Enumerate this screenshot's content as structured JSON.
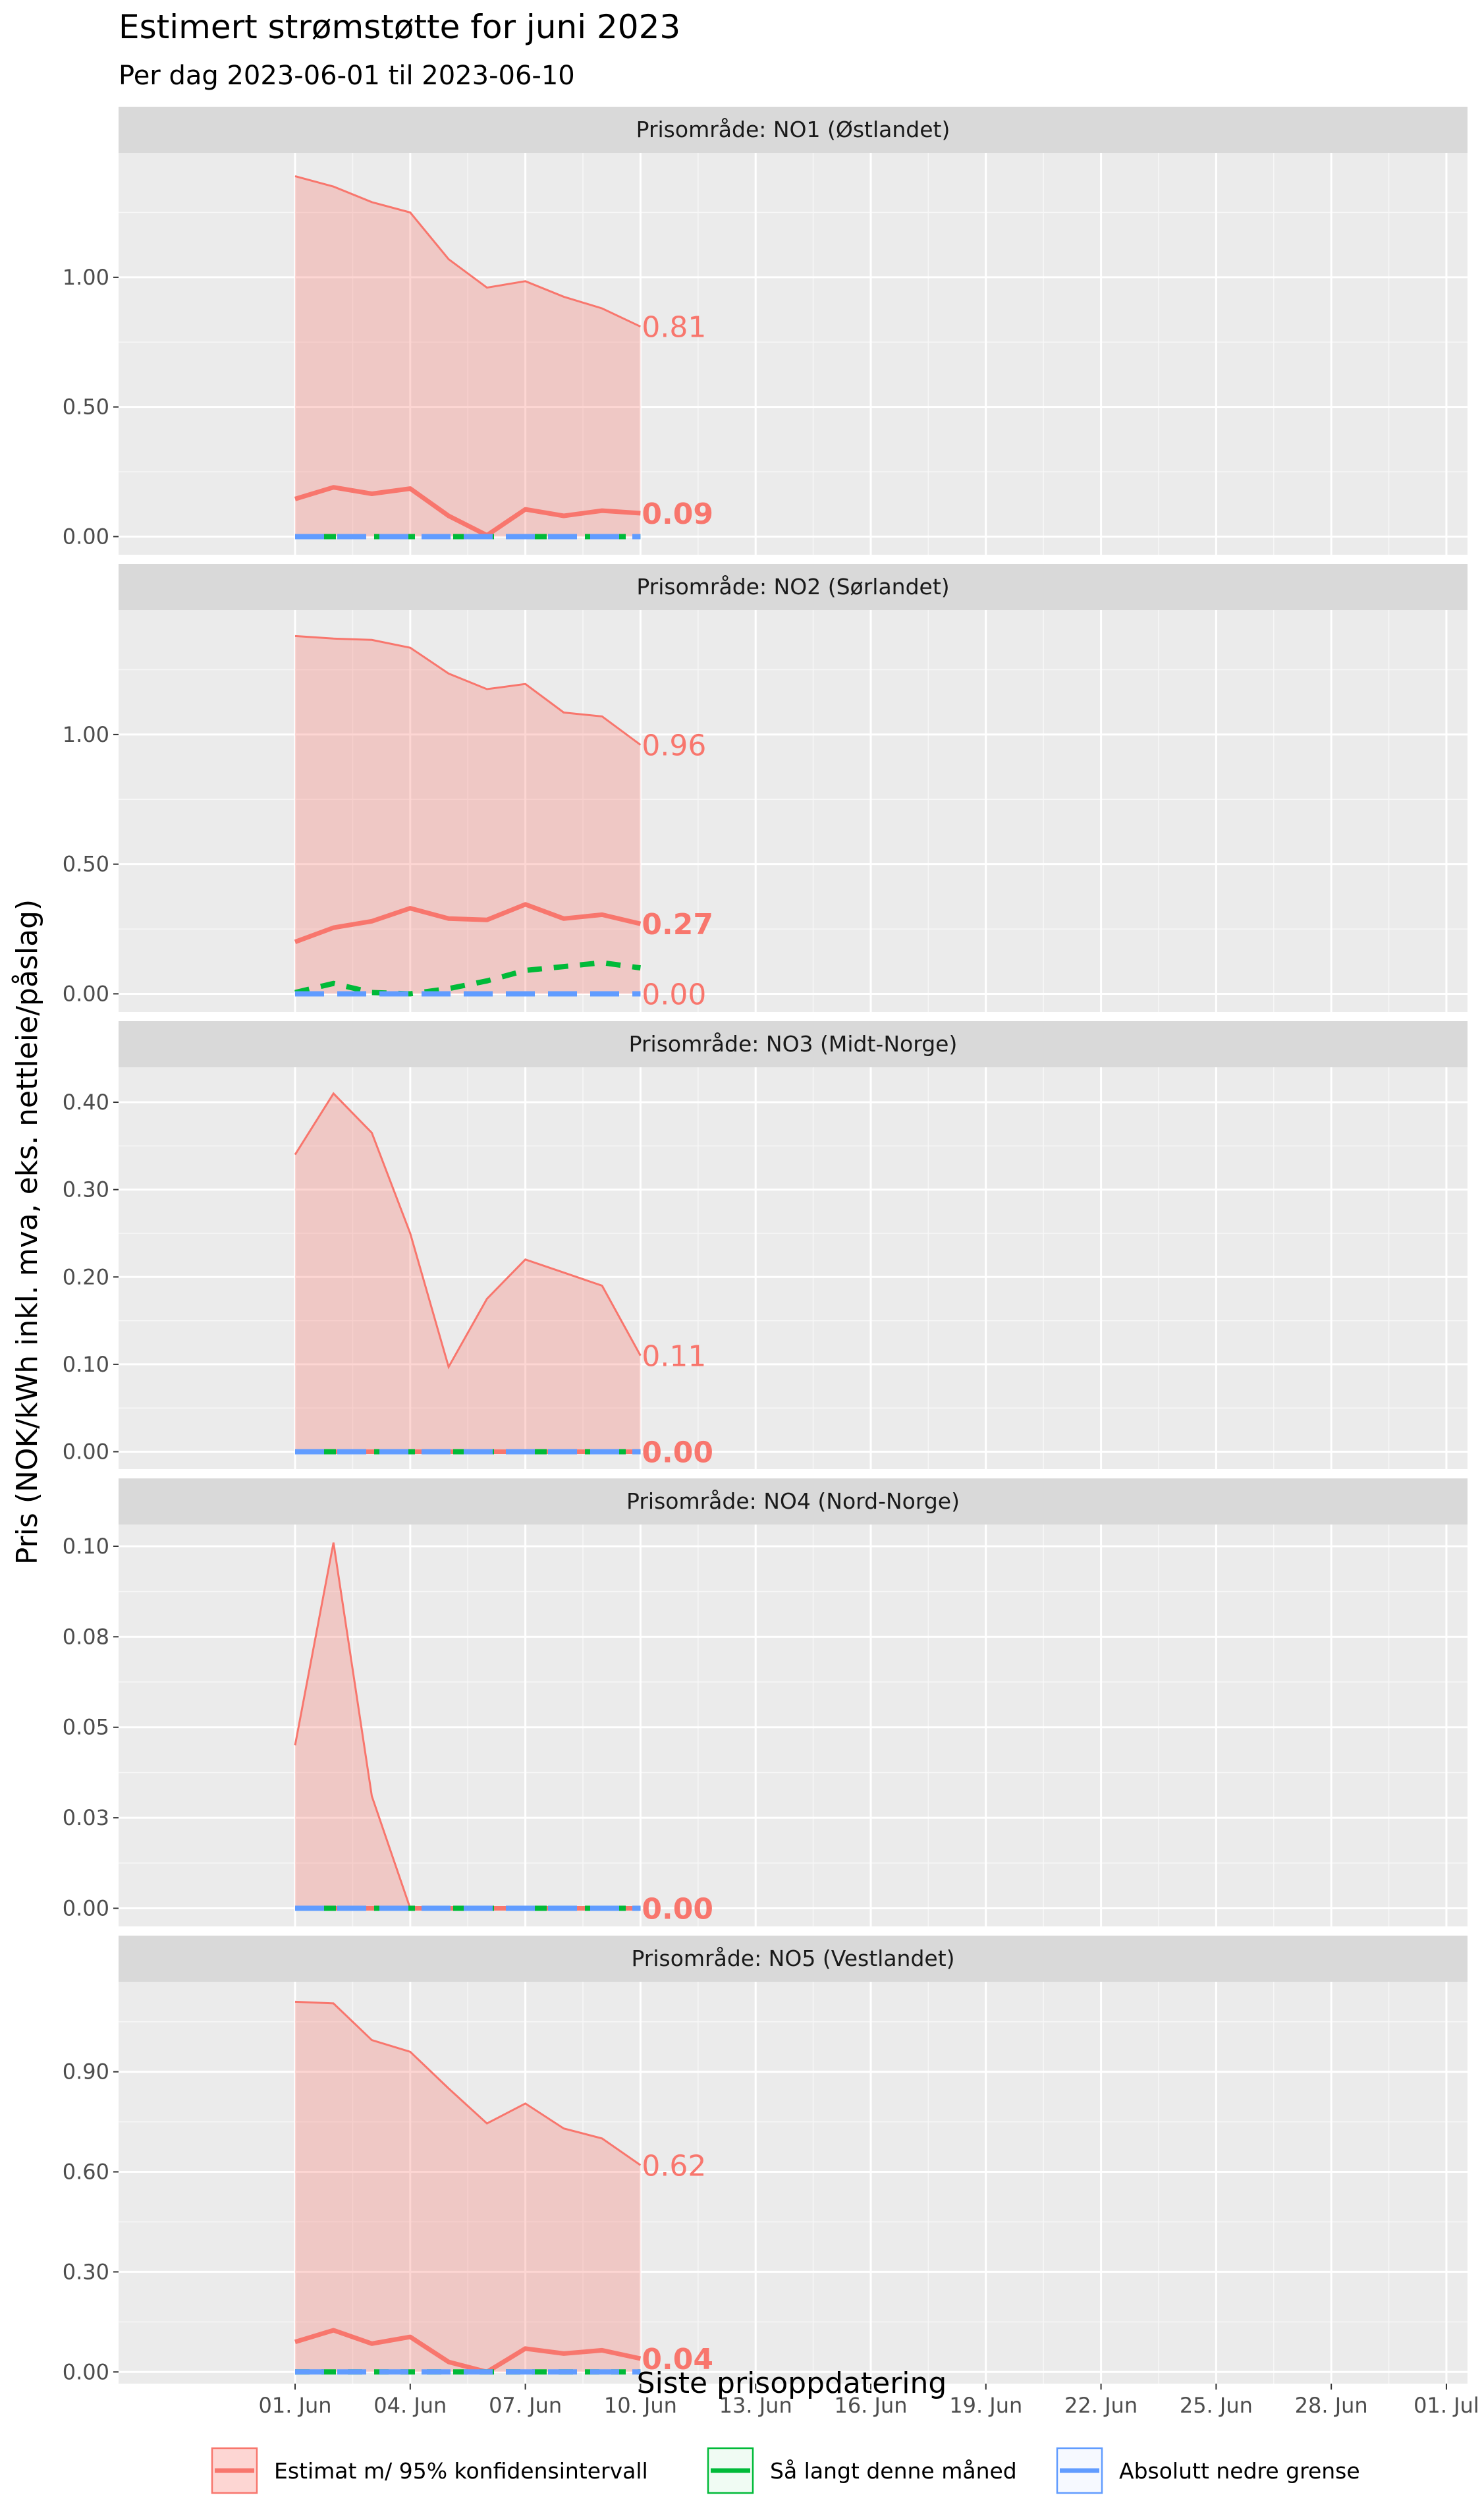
{
  "title": "Estimert strømstøtte for juni 2023",
  "subtitle": "Per dag 2023-06-01 til 2023-06-10",
  "chart_data": {
    "type": "line",
    "xlabel": "Siste prisoppdatering",
    "ylabel": "Pris (NOK/kWh inkl. mva, eks. nettleie/påslag)",
    "x_tick_labels": [
      "01. Jun",
      "04. Jun",
      "07. Jun",
      "10. Jun",
      "13. Jun",
      "16. Jun",
      "19. Jun",
      "22. Jun",
      "25. Jun",
      "28. Jun",
      "01. Jul"
    ],
    "x_tick_dates": [
      "2023-06-01",
      "2023-06-04",
      "2023-06-07",
      "2023-06-10",
      "2023-06-13",
      "2023-06-16",
      "2023-06-19",
      "2023-06-22",
      "2023-06-25",
      "2023-06-28",
      "2023-07-01"
    ],
    "x_dates": [
      "2023-06-01",
      "2023-06-02",
      "2023-06-03",
      "2023-06-04",
      "2023-06-05",
      "2023-06-06",
      "2023-06-07",
      "2023-06-08",
      "2023-06-09",
      "2023-06-10"
    ],
    "xlim": [
      "2023-05-29",
      "2023-07-01"
    ],
    "legend_position": "bottom",
    "legend": [
      {
        "label": "Estimat m/ 95% konfidensintervall",
        "color": "#F8766D"
      },
      {
        "label": "Så langt denne måned",
        "color": "#00BA38"
      },
      {
        "label": "Absolutt nedre grense",
        "color": "#619CFF"
      }
    ],
    "panels": [
      {
        "strip": "Prisområde: NO1 (Østlandet)",
        "ylim": [
          -0.07,
          1.48
        ],
        "y_ticks": [
          0,
          0.5,
          1.0
        ],
        "y_tick_labels": [
          "0.00",
          "0.50",
          "1.00"
        ],
        "upper": [
          1.39,
          1.35,
          1.29,
          1.25,
          1.07,
          0.96,
          0.985,
          0.925,
          0.88,
          0.81
        ],
        "lower": [
          0,
          0,
          0,
          0,
          0,
          0,
          0,
          0,
          0,
          0
        ],
        "estimate": [
          0.145,
          0.19,
          0.165,
          0.185,
          0.08,
          0.005,
          0.105,
          0.08,
          0.1,
          0.09
        ],
        "so_far": [
          0,
          0,
          0,
          0,
          0,
          0,
          0,
          0,
          0,
          0
        ],
        "lower_bound": [
          0,
          0,
          0,
          0,
          0,
          0,
          0,
          0,
          0,
          0
        ],
        "end_labels": [
          {
            "text": "0.81",
            "value": 0.81,
            "bold": false
          },
          {
            "text": "0.09",
            "value": 0.09,
            "bold": true
          }
        ]
      },
      {
        "strip": "Prisområde: NO2 (Sørlandet)",
        "ylim": [
          -0.07,
          1.48
        ],
        "y_ticks": [
          0,
          0.5,
          1.0
        ],
        "y_tick_labels": [
          "0.00",
          "0.50",
          "1.00"
        ],
        "upper": [
          1.38,
          1.37,
          1.365,
          1.335,
          1.235,
          1.175,
          1.195,
          1.085,
          1.07,
          0.96
        ],
        "lower": [
          0,
          0,
          0,
          0,
          0,
          0,
          0,
          0,
          0,
          0
        ],
        "estimate": [
          0.2,
          0.255,
          0.28,
          0.33,
          0.29,
          0.285,
          0.345,
          0.29,
          0.305,
          0.27
        ],
        "so_far": [
          0.005,
          0.04,
          0.005,
          0,
          0.02,
          0.05,
          0.09,
          0.105,
          0.12,
          0.1
        ],
        "lower_bound": [
          0,
          0,
          0,
          0,
          0,
          0,
          0,
          0,
          0,
          0
        ],
        "end_labels": [
          {
            "text": "0.96",
            "value": 0.96,
            "bold": false
          },
          {
            "text": "0.27",
            "value": 0.27,
            "bold": true
          },
          {
            "text": "0.00",
            "value": 0.0,
            "bold": false
          }
        ]
      },
      {
        "strip": "Prisområde: NO3 (Midt-Norge)",
        "ylim": [
          -0.02,
          0.44
        ],
        "y_ticks": [
          0,
          0.1,
          0.2,
          0.3,
          0.4
        ],
        "y_tick_labels": [
          "0.00",
          "0.10",
          "0.20",
          "0.30",
          "0.40"
        ],
        "upper": [
          0.34,
          0.41,
          0.365,
          0.25,
          0.097,
          0.175,
          0.22,
          0.205,
          0.19,
          0.11
        ],
        "lower": [
          0,
          0,
          0,
          0,
          0,
          0,
          0,
          0,
          0,
          0
        ],
        "estimate": [
          0,
          0,
          0,
          0,
          0,
          0,
          0,
          0,
          0,
          0
        ],
        "so_far": [
          0,
          0,
          0,
          0,
          0,
          0,
          0,
          0,
          0,
          0
        ],
        "lower_bound": [
          0,
          0,
          0,
          0,
          0,
          0,
          0,
          0,
          0,
          0
        ],
        "end_labels": [
          {
            "text": "0.11",
            "value": 0.11,
            "bold": false
          },
          {
            "text": "0.00",
            "value": 0.0,
            "bold": true
          }
        ]
      },
      {
        "strip": "Prisområde: NO4 (Nord-Norge)",
        "ylim": [
          -0.005,
          0.106
        ],
        "y_ticks": [
          0,
          0.025,
          0.05,
          0.075,
          0.1
        ],
        "y_tick_labels": [
          "0.00",
          "0.03",
          "0.05",
          "0.08",
          "0.10"
        ],
        "upper": [
          0.045,
          0.101,
          0.031,
          0,
          0,
          0,
          0,
          0,
          0,
          0
        ],
        "lower": [
          0,
          0,
          0,
          0,
          0,
          0,
          0,
          0,
          0,
          0
        ],
        "estimate": [
          0,
          0,
          0,
          0,
          0,
          0,
          0,
          0,
          0,
          0
        ],
        "so_far": [
          0,
          0,
          0,
          0,
          0,
          0,
          0,
          0,
          0,
          0
        ],
        "lower_bound": [
          0,
          0,
          0,
          0,
          0,
          0,
          0,
          0,
          0,
          0
        ],
        "end_labels": [
          {
            "text": "0.00",
            "value": 0.0,
            "bold": true
          }
        ]
      },
      {
        "strip": "Prisområde: NO5 (Vestlandet)",
        "ylim": [
          -0.035,
          1.17
        ],
        "y_ticks": [
          0,
          0.3,
          0.6,
          0.9
        ],
        "y_tick_labels": [
          "0.00",
          "0.30",
          "0.60",
          "0.90"
        ],
        "upper": [
          1.11,
          1.105,
          0.995,
          0.96,
          0.85,
          0.745,
          0.805,
          0.73,
          0.7,
          0.62
        ],
        "lower": [
          0,
          0,
          0,
          0,
          0,
          0,
          0,
          0,
          0,
          0
        ],
        "estimate": [
          0.09,
          0.125,
          0.085,
          0.105,
          0.03,
          0,
          0.07,
          0.055,
          0.065,
          0.04
        ],
        "so_far": [
          0,
          0,
          0,
          0,
          0,
          0,
          0,
          0,
          0,
          0
        ],
        "lower_bound": [
          0,
          0,
          0,
          0,
          0,
          0,
          0,
          0,
          0,
          0
        ],
        "end_labels": [
          {
            "text": "0.62",
            "value": 0.62,
            "bold": false
          },
          {
            "text": "0.04",
            "value": 0.04,
            "bold": true
          }
        ]
      }
    ]
  }
}
